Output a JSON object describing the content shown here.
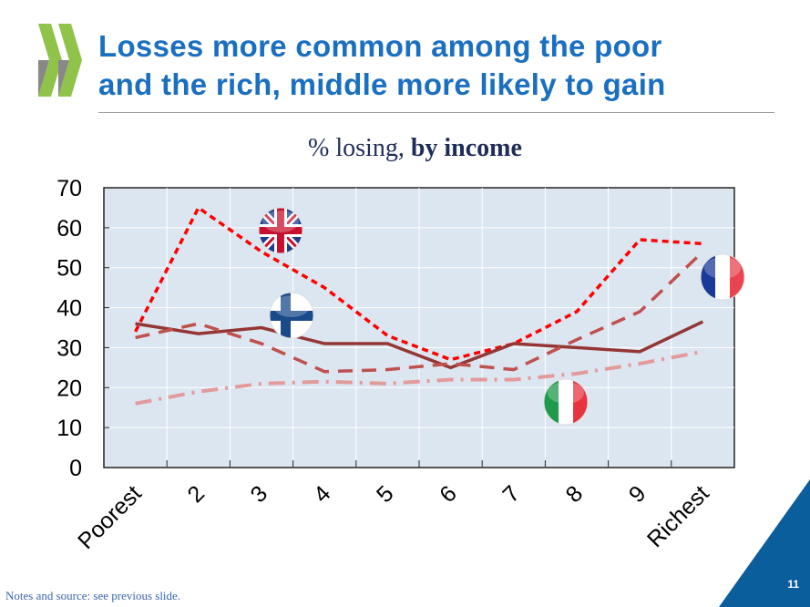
{
  "slide": {
    "title_line1": "Losses more common among the poor",
    "title_line2": "and the rich, middle more likely to gain",
    "subtitle_plain": "% losing, ",
    "subtitle_bold": "by income",
    "footnote": "Notes and source: see previous slide.",
    "page_number": "11"
  },
  "chart_data": {
    "type": "line",
    "title": "% losing, by income",
    "xlabel": "",
    "ylabel": "",
    "ylim": [
      0,
      70
    ],
    "yticks": [
      0,
      10,
      20,
      30,
      40,
      50,
      60,
      70
    ],
    "grid": true,
    "categories": [
      "Poorest",
      "2",
      "3",
      "4",
      "5",
      "6",
      "7",
      "8",
      "9",
      "Richest"
    ],
    "series": [
      {
        "name": "United Kingdom",
        "flag": "uk-flag",
        "color": "#ff0000",
        "style": "short-dash",
        "values": [
          34,
          65,
          54,
          45,
          33,
          27,
          31,
          39,
          57,
          56
        ]
      },
      {
        "name": "Finland",
        "flag": "finland-flag",
        "color": "#943634",
        "style": "solid",
        "values": [
          36,
          33.5,
          35,
          31,
          31,
          25,
          31,
          30,
          29,
          36.5
        ]
      },
      {
        "name": "France",
        "flag": "france-flag",
        "color": "#c0504d",
        "style": "long-dash",
        "values": [
          32.5,
          36,
          31,
          24,
          24.5,
          26,
          24.5,
          32,
          39,
          54
        ]
      },
      {
        "name": "Italy",
        "flag": "italy-flag",
        "color": "#e39a9a",
        "style": "dash-dot",
        "values": [
          16,
          19,
          21,
          21.5,
          21,
          22,
          22,
          23.5,
          26,
          29
        ]
      }
    ]
  }
}
